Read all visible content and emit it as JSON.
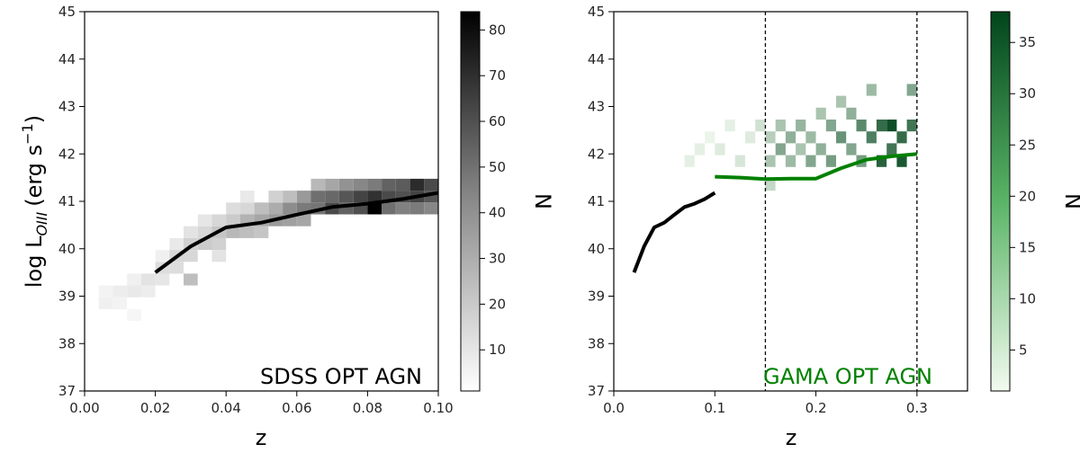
{
  "chart_data": [
    {
      "type": "heatmap",
      "title": "",
      "panel_label": "SDSS OPT AGN",
      "panel_label_color": "#000000",
      "xlabel": "z",
      "ylabel_main": "log L",
      "ylabel_sub": "OIII",
      "ylabel_units": "(erg s",
      "ylabel_exp": "−1",
      "ylabel_close": ")",
      "xlim": [
        0.0,
        0.1
      ],
      "ylim": [
        37,
        45
      ],
      "x_ticks": [
        "0.00",
        "0.02",
        "0.04",
        "0.06",
        "0.08",
        "0.10"
      ],
      "y_ticks": [
        "37",
        "38",
        "39",
        "40",
        "41",
        "42",
        "43",
        "44",
        "45"
      ],
      "colorbar": {
        "label": "N",
        "min": 1,
        "max": 84,
        "ticks": [
          "10",
          "20",
          "30",
          "40",
          "50",
          "60",
          "70",
          "80"
        ],
        "cmap": "greys",
        "low_color": "#ffffff",
        "high_color": "#000000"
      },
      "median_line": {
        "color": "#000000",
        "x": [
          0.02,
          0.03,
          0.04,
          0.05,
          0.06,
          0.07,
          0.08,
          0.09,
          0.1
        ],
        "y": [
          39.5,
          40.05,
          40.45,
          40.55,
          40.72,
          40.88,
          40.95,
          41.05,
          41.18
        ]
      },
      "heatmap": {
        "x_bin_width": 0.004,
        "y_bin_width": 0.25,
        "cells": [
          {
            "x": 0.006,
            "y": 39.1,
            "n": 5
          },
          {
            "x": 0.006,
            "y": 38.85,
            "n": 6
          },
          {
            "x": 0.01,
            "y": 39.1,
            "n": 7
          },
          {
            "x": 0.01,
            "y": 38.85,
            "n": 5
          },
          {
            "x": 0.014,
            "y": 39.1,
            "n": 8
          },
          {
            "x": 0.014,
            "y": 39.35,
            "n": 6
          },
          {
            "x": 0.014,
            "y": 38.6,
            "n": 4
          },
          {
            "x": 0.018,
            "y": 39.35,
            "n": 10
          },
          {
            "x": 0.018,
            "y": 39.1,
            "n": 7
          },
          {
            "x": 0.022,
            "y": 39.6,
            "n": 12
          },
          {
            "x": 0.022,
            "y": 39.35,
            "n": 9
          },
          {
            "x": 0.022,
            "y": 39.85,
            "n": 6
          },
          {
            "x": 0.026,
            "y": 39.85,
            "n": 14
          },
          {
            "x": 0.026,
            "y": 39.6,
            "n": 12
          },
          {
            "x": 0.026,
            "y": 40.1,
            "n": 8
          },
          {
            "x": 0.03,
            "y": 40.1,
            "n": 16
          },
          {
            "x": 0.03,
            "y": 39.85,
            "n": 14
          },
          {
            "x": 0.03,
            "y": 40.35,
            "n": 10
          },
          {
            "x": 0.03,
            "y": 39.35,
            "n": 22
          },
          {
            "x": 0.034,
            "y": 40.1,
            "n": 18
          },
          {
            "x": 0.034,
            "y": 40.35,
            "n": 14
          },
          {
            "x": 0.034,
            "y": 40.6,
            "n": 9
          },
          {
            "x": 0.038,
            "y": 40.35,
            "n": 20
          },
          {
            "x": 0.038,
            "y": 40.6,
            "n": 14
          },
          {
            "x": 0.038,
            "y": 40.1,
            "n": 16
          },
          {
            "x": 0.038,
            "y": 39.85,
            "n": 10
          },
          {
            "x": 0.042,
            "y": 40.35,
            "n": 24
          },
          {
            "x": 0.042,
            "y": 40.6,
            "n": 18
          },
          {
            "x": 0.042,
            "y": 40.85,
            "n": 12
          },
          {
            "x": 0.046,
            "y": 40.6,
            "n": 26
          },
          {
            "x": 0.046,
            "y": 40.35,
            "n": 22
          },
          {
            "x": 0.046,
            "y": 40.85,
            "n": 14
          },
          {
            "x": 0.046,
            "y": 41.1,
            "n": 8
          },
          {
            "x": 0.05,
            "y": 40.6,
            "n": 30
          },
          {
            "x": 0.05,
            "y": 40.85,
            "n": 22
          },
          {
            "x": 0.05,
            "y": 40.35,
            "n": 20
          },
          {
            "x": 0.054,
            "y": 40.6,
            "n": 34
          },
          {
            "x": 0.054,
            "y": 40.85,
            "n": 28
          },
          {
            "x": 0.054,
            "y": 41.1,
            "n": 16
          },
          {
            "x": 0.058,
            "y": 40.85,
            "n": 38
          },
          {
            "x": 0.058,
            "y": 40.6,
            "n": 32
          },
          {
            "x": 0.058,
            "y": 41.1,
            "n": 22
          },
          {
            "x": 0.062,
            "y": 40.85,
            "n": 44
          },
          {
            "x": 0.062,
            "y": 41.1,
            "n": 34
          },
          {
            "x": 0.062,
            "y": 40.6,
            "n": 30
          },
          {
            "x": 0.066,
            "y": 41.1,
            "n": 48
          },
          {
            "x": 0.066,
            "y": 40.85,
            "n": 46
          },
          {
            "x": 0.066,
            "y": 41.35,
            "n": 24
          },
          {
            "x": 0.07,
            "y": 40.85,
            "n": 60
          },
          {
            "x": 0.07,
            "y": 41.1,
            "n": 50
          },
          {
            "x": 0.07,
            "y": 41.35,
            "n": 30
          },
          {
            "x": 0.074,
            "y": 41.1,
            "n": 56
          },
          {
            "x": 0.074,
            "y": 40.85,
            "n": 52
          },
          {
            "x": 0.074,
            "y": 41.35,
            "n": 36
          },
          {
            "x": 0.078,
            "y": 41.1,
            "n": 62
          },
          {
            "x": 0.078,
            "y": 40.85,
            "n": 58
          },
          {
            "x": 0.078,
            "y": 41.35,
            "n": 40
          },
          {
            "x": 0.082,
            "y": 40.85,
            "n": 84
          },
          {
            "x": 0.082,
            "y": 41.1,
            "n": 68
          },
          {
            "x": 0.082,
            "y": 41.35,
            "n": 44
          },
          {
            "x": 0.086,
            "y": 41.1,
            "n": 60
          },
          {
            "x": 0.086,
            "y": 41.35,
            "n": 52
          },
          {
            "x": 0.086,
            "y": 40.85,
            "n": 48
          },
          {
            "x": 0.09,
            "y": 41.1,
            "n": 58
          },
          {
            "x": 0.09,
            "y": 41.35,
            "n": 54
          },
          {
            "x": 0.09,
            "y": 40.85,
            "n": 42
          },
          {
            "x": 0.094,
            "y": 41.35,
            "n": 70
          },
          {
            "x": 0.094,
            "y": 41.1,
            "n": 62
          },
          {
            "x": 0.094,
            "y": 40.85,
            "n": 44
          },
          {
            "x": 0.098,
            "y": 41.35,
            "n": 60
          },
          {
            "x": 0.098,
            "y": 41.1,
            "n": 56
          },
          {
            "x": 0.098,
            "y": 40.85,
            "n": 40
          }
        ]
      }
    },
    {
      "type": "heatmap",
      "title": "",
      "panel_label": "GAMA OPT AGN",
      "panel_label_color": "#008000",
      "xlabel": "z",
      "xlim": [
        0.0,
        0.35
      ],
      "ylim": [
        37,
        45
      ],
      "x_ticks": [
        "0.0",
        "0.1",
        "0.2",
        "0.3"
      ],
      "y_ticks": [
        "37",
        "38",
        "39",
        "40",
        "41",
        "42",
        "43",
        "44",
        "45"
      ],
      "colorbar": {
        "label": "N",
        "min": 1,
        "max": 38,
        "ticks": [
          "5",
          "10",
          "15",
          "20",
          "25",
          "30",
          "35"
        ],
        "cmap": "greens",
        "low_color": "#f2faef",
        "high_color": "#00441b"
      },
      "vlines": [
        0.15,
        0.3
      ],
      "vline_color": "#000000",
      "sdss_line": {
        "color": "#000000",
        "x": [
          0.02,
          0.03,
          0.04,
          0.05,
          0.06,
          0.07,
          0.08,
          0.09,
          0.1
        ],
        "y": [
          39.5,
          40.05,
          40.45,
          40.55,
          40.72,
          40.88,
          40.95,
          41.05,
          41.18
        ]
      },
      "median_line": {
        "color": "#008000",
        "x": [
          0.1,
          0.125,
          0.15,
          0.175,
          0.2,
          0.225,
          0.25,
          0.275,
          0.3
        ],
        "y": [
          41.52,
          41.5,
          41.47,
          41.48,
          41.48,
          41.7,
          41.88,
          41.95,
          42.0
        ]
      },
      "heatmap": {
        "x_bin_width": 0.01,
        "y_bin_width": 0.25,
        "cells": [
          {
            "x": 0.075,
            "y": 41.85,
            "n": 3
          },
          {
            "x": 0.085,
            "y": 42.1,
            "n": 3
          },
          {
            "x": 0.095,
            "y": 42.35,
            "n": 2
          },
          {
            "x": 0.105,
            "y": 42.1,
            "n": 4
          },
          {
            "x": 0.115,
            "y": 42.6,
            "n": 3
          },
          {
            "x": 0.125,
            "y": 41.85,
            "n": 5
          },
          {
            "x": 0.135,
            "y": 42.35,
            "n": 4
          },
          {
            "x": 0.145,
            "y": 42.6,
            "n": 6
          },
          {
            "x": 0.155,
            "y": 41.85,
            "n": 12
          },
          {
            "x": 0.155,
            "y": 42.35,
            "n": 10
          },
          {
            "x": 0.155,
            "y": 41.35,
            "n": 8
          },
          {
            "x": 0.165,
            "y": 42.1,
            "n": 18
          },
          {
            "x": 0.165,
            "y": 42.6,
            "n": 12
          },
          {
            "x": 0.175,
            "y": 41.85,
            "n": 14
          },
          {
            "x": 0.175,
            "y": 42.35,
            "n": 16
          },
          {
            "x": 0.185,
            "y": 42.6,
            "n": 15
          },
          {
            "x": 0.185,
            "y": 42.1,
            "n": 12
          },
          {
            "x": 0.195,
            "y": 41.85,
            "n": 18
          },
          {
            "x": 0.195,
            "y": 42.35,
            "n": 14
          },
          {
            "x": 0.205,
            "y": 42.85,
            "n": 12
          },
          {
            "x": 0.205,
            "y": 42.1,
            "n": 16
          },
          {
            "x": 0.215,
            "y": 41.85,
            "n": 20
          },
          {
            "x": 0.215,
            "y": 42.6,
            "n": 18
          },
          {
            "x": 0.225,
            "y": 42.35,
            "n": 22
          },
          {
            "x": 0.225,
            "y": 43.1,
            "n": 12
          },
          {
            "x": 0.235,
            "y": 42.85,
            "n": 16
          },
          {
            "x": 0.235,
            "y": 42.1,
            "n": 18
          },
          {
            "x": 0.245,
            "y": 42.6,
            "n": 24
          },
          {
            "x": 0.245,
            "y": 41.85,
            "n": 20
          },
          {
            "x": 0.255,
            "y": 42.35,
            "n": 26
          },
          {
            "x": 0.255,
            "y": 43.35,
            "n": 14
          },
          {
            "x": 0.265,
            "y": 42.6,
            "n": 30
          },
          {
            "x": 0.265,
            "y": 41.85,
            "n": 32
          },
          {
            "x": 0.275,
            "y": 42.6,
            "n": 36
          },
          {
            "x": 0.275,
            "y": 42.1,
            "n": 28
          },
          {
            "x": 0.285,
            "y": 42.35,
            "n": 30
          },
          {
            "x": 0.285,
            "y": 41.85,
            "n": 34
          },
          {
            "x": 0.295,
            "y": 42.6,
            "n": 28
          },
          {
            "x": 0.295,
            "y": 43.35,
            "n": 18
          }
        ]
      }
    }
  ]
}
